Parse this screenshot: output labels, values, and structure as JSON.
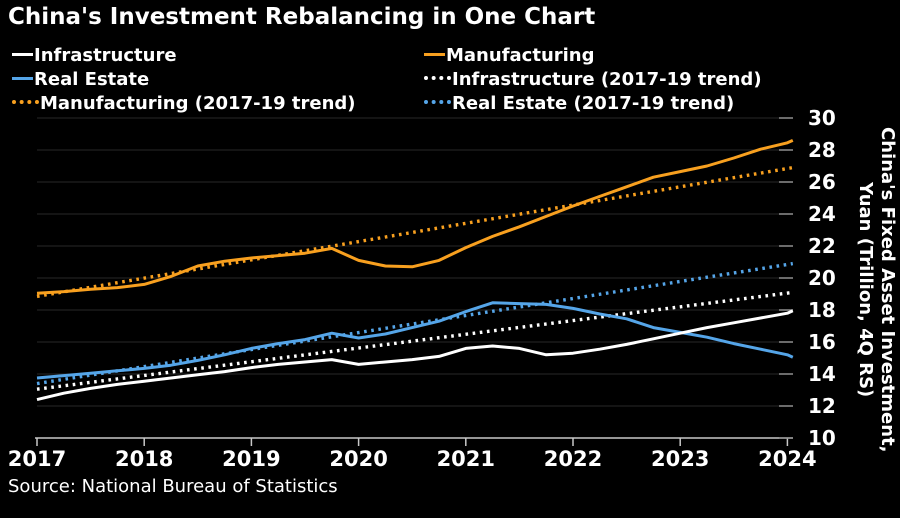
{
  "title": "China's Investment Rebalancing in One Chart",
  "source": "Source: National Bureau of Statistics",
  "y_axis_title_line1": "China's Fixed Asset Investment,",
  "y_axis_title_line2": "Yuan (Trillion, 4Q RS)",
  "colors": {
    "background": "#000000",
    "text": "#ffffff",
    "orange": "#f8a01f",
    "blue": "#55a5e8",
    "white": "#ffffff",
    "grid": "#282828",
    "axis": "#c8c8c8"
  },
  "legend": {
    "columns": [
      [
        {
          "label": "Infrastructure",
          "color": "#ffffff",
          "style": "solid"
        },
        {
          "label": "Real Estate",
          "color": "#55a5e8",
          "style": "solid"
        },
        {
          "label": "Manufacturing (2017-19 trend)",
          "color": "#f8a01f",
          "style": "dotted"
        }
      ],
      [
        {
          "label": "Manufacturing",
          "color": "#f8a01f",
          "style": "solid"
        },
        {
          "label": "Infrastructure (2017-19 trend)",
          "color": "#ffffff",
          "style": "dotted"
        },
        {
          "label": "Real Estate (2017-19 trend)",
          "color": "#55a5e8",
          "style": "dotted"
        }
      ]
    ]
  },
  "chart_data": {
    "type": "line",
    "title": "China's Investment Rebalancing in One Chart",
    "ylabel": "China's Fixed Asset Investment, Yuan (Trillion, 4Q RS)",
    "xlim": [
      2017,
      2024.05
    ],
    "ylim": [
      10,
      30
    ],
    "x_ticks": [
      2017,
      2018,
      2019,
      2020,
      2021,
      2022,
      2023,
      2024
    ],
    "y_ticks": [
      10,
      12,
      14,
      16,
      18,
      20,
      22,
      24,
      26,
      28,
      30
    ],
    "grid": "horizontal",
    "legend_position": "top",
    "x": [
      2017,
      2017.25,
      2017.5,
      2017.75,
      2018,
      2018.25,
      2018.5,
      2018.75,
      2019,
      2019.25,
      2019.5,
      2019.75,
      2020,
      2020.25,
      2020.5,
      2020.75,
      2021,
      2021.25,
      2021.5,
      2021.75,
      2022,
      2022.25,
      2022.5,
      2022.75,
      2023,
      2023.25,
      2023.5,
      2023.75,
      2024,
      2024.05
    ],
    "series": [
      {
        "name": "Manufacturing (2017-19 trend)",
        "color": "#f8a01f",
        "style": "dotted",
        "x": [
          2017,
          2024.05
        ],
        "values": [
          18.85,
          26.9
        ]
      },
      {
        "name": "Infrastructure (2017-19 trend)",
        "color": "#ffffff",
        "style": "dotted",
        "x": [
          2017,
          2024.05
        ],
        "values": [
          13.05,
          19.1
        ]
      },
      {
        "name": "Real Estate (2017-19 trend)",
        "color": "#55a5e8",
        "style": "dotted",
        "x": [
          2017,
          2024.05
        ],
        "values": [
          13.4,
          20.9
        ]
      },
      {
        "name": "Manufacturing",
        "color": "#f8a01f",
        "style": "solid",
        "values": [
          19.05,
          19.15,
          19.3,
          19.4,
          19.6,
          20.1,
          20.75,
          21.05,
          21.25,
          21.4,
          21.55,
          21.85,
          21.1,
          20.75,
          20.7,
          21.1,
          21.9,
          22.6,
          23.2,
          23.85,
          24.5,
          25.1,
          25.7,
          26.3,
          26.65,
          27.0,
          27.5,
          28.05,
          28.45,
          28.6
        ]
      },
      {
        "name": "Real Estate",
        "color": "#55a5e8",
        "style": "solid",
        "values": [
          13.75,
          13.9,
          14.05,
          14.2,
          14.35,
          14.55,
          14.85,
          15.2,
          15.6,
          15.9,
          16.15,
          16.55,
          16.25,
          16.5,
          16.9,
          17.3,
          17.9,
          18.45,
          18.4,
          18.35,
          18.1,
          17.75,
          17.45,
          16.9,
          16.6,
          16.3,
          15.9,
          15.55,
          15.2,
          15.05
        ]
      },
      {
        "name": "Infrastructure",
        "color": "#ffffff",
        "style": "solid",
        "values": [
          12.4,
          12.8,
          13.1,
          13.35,
          13.55,
          13.75,
          13.95,
          14.15,
          14.4,
          14.6,
          14.75,
          14.9,
          14.6,
          14.75,
          14.9,
          15.1,
          15.6,
          15.75,
          15.6,
          15.2,
          15.3,
          15.55,
          15.85,
          16.2,
          16.55,
          16.9,
          17.2,
          17.5,
          17.8,
          17.95
        ]
      }
    ]
  }
}
